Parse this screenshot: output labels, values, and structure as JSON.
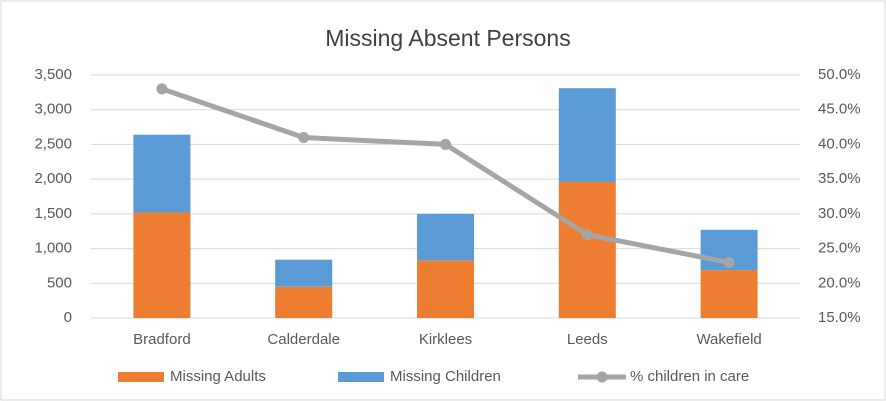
{
  "chart_data": {
    "type": "bar",
    "stacked": true,
    "title": "Missing Absent Persons",
    "categories": [
      "Bradford",
      "Calderdale",
      "Kirklees",
      "Leeds",
      "Wakefield"
    ],
    "series": [
      {
        "name": "Missing Adults",
        "color": "#ed7d31",
        "values": [
          1520,
          450,
          830,
          1960,
          690
        ]
      },
      {
        "name": "Missing Children",
        "color": "#5b9bd5",
        "values": [
          1120,
          390,
          670,
          1350,
          580
        ]
      },
      {
        "name": "% children in care",
        "type": "line",
        "axis": "y2",
        "color": "#a5a5a5",
        "values": [
          48,
          41,
          40,
          27,
          23
        ]
      }
    ],
    "ylim": [
      0,
      3500
    ],
    "yticks": [
      0,
      500,
      {
        "value": 1000,
        "label": "1,000"
      },
      {
        "value": 1500,
        "label": "1,500"
      },
      {
        "value": 2000,
        "label": "2,000"
      },
      {
        "value": 2500,
        "label": "2,500"
      },
      {
        "value": 3000,
        "label": "3,000"
      },
      {
        "value": 3500,
        "label": "3,500"
      }
    ],
    "y2lim": [
      15,
      50
    ],
    "y2ticks": [
      {
        "value": 15,
        "label": "15.0%"
      },
      {
        "value": 20,
        "label": "20.0%"
      },
      {
        "value": 25,
        "label": "25.0%"
      },
      {
        "value": 30,
        "label": "30.0%"
      },
      {
        "value": 35,
        "label": "35.0%"
      },
      {
        "value": 40,
        "label": "40.0%"
      },
      {
        "value": 45,
        "label": "45.0%"
      },
      {
        "value": 50,
        "label": "50.0%"
      }
    ],
    "grid": true,
    "legend": "bottom"
  }
}
